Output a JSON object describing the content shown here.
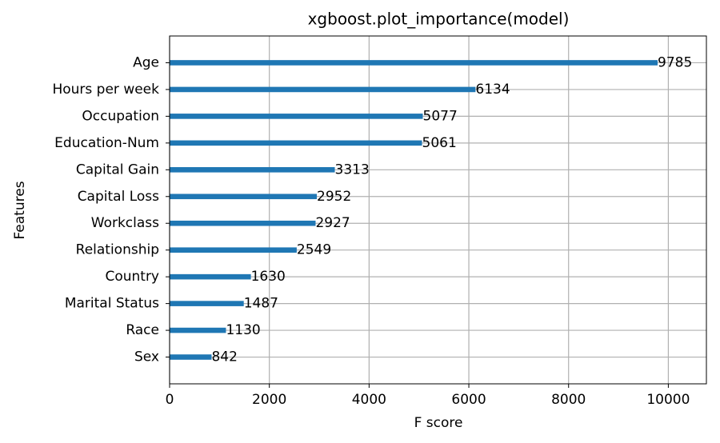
{
  "chart_data": {
    "type": "barh",
    "title": "xgboost.plot_importance(model)",
    "x_label": "F score",
    "y_label": "Features",
    "categories": [
      "Age",
      "Hours per week",
      "Occupation",
      "Education-Num",
      "Capital Gain",
      "Capital Loss",
      "Workclass",
      "Relationship",
      "Country",
      "Marital Status",
      "Race",
      "Sex"
    ],
    "values": [
      9785,
      6134,
      5077,
      5061,
      3313,
      2952,
      2927,
      2549,
      1630,
      1487,
      1130,
      842
    ],
    "color": "#1f77b4",
    "xlim": [
      0,
      10763.5
    ],
    "xticks": [
      0,
      2000,
      4000,
      6000,
      8000,
      10000
    ],
    "grid": true
  }
}
